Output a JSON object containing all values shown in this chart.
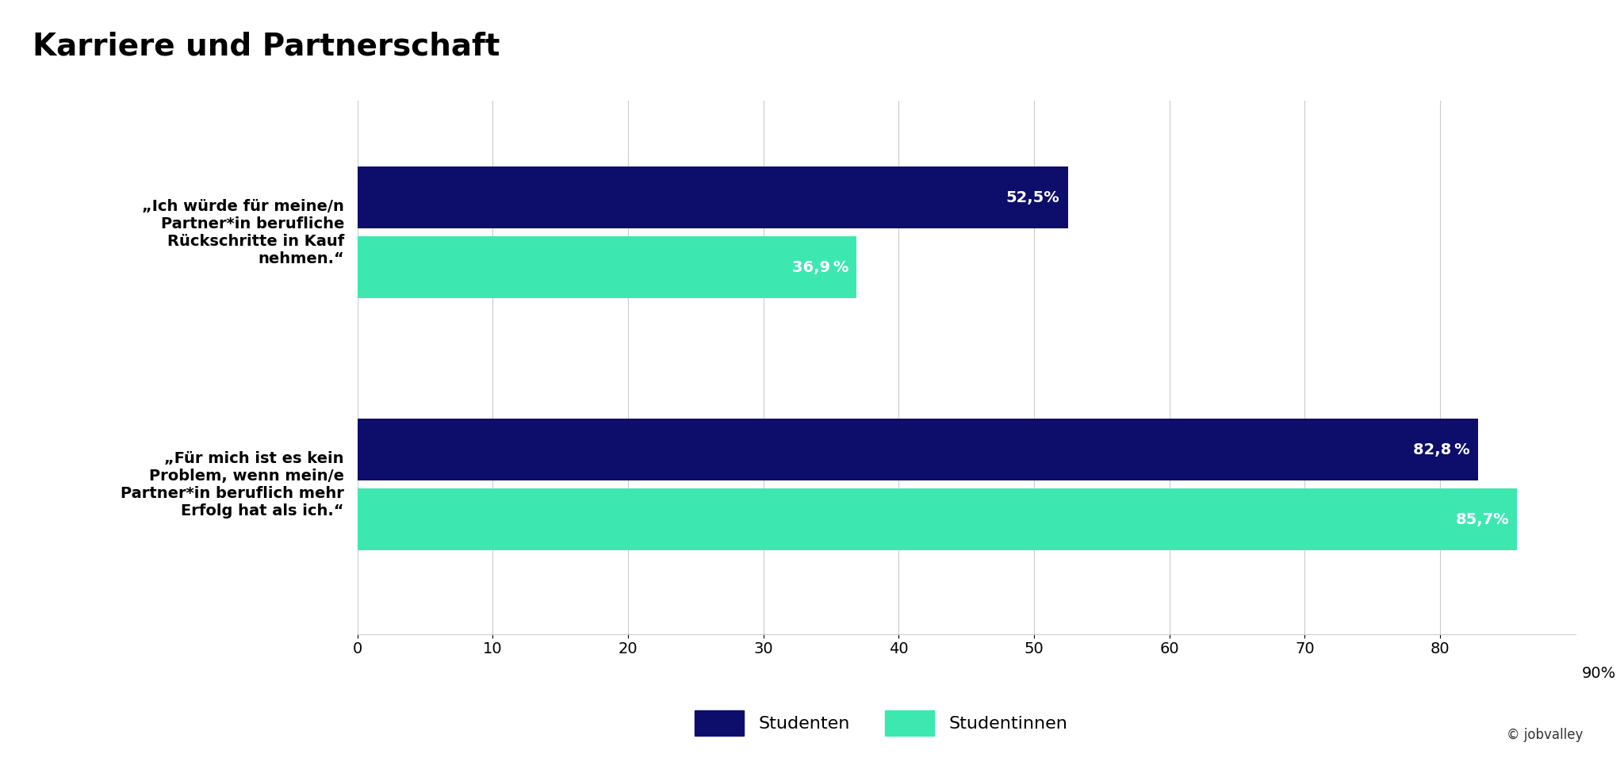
{
  "title": "Karriere und Partnerschaft",
  "categories_top": "„Ich würde für meine/n\nPartner*in berufliche\nRückschritte in Kauf\nnehmen.“",
  "categories_bottom": "„Für mich ist es kein\nProblem, wenn mein/e\nPartner*in beruflich mehr\nErfolg hat als ich.“",
  "group1_stud_val": 52.5,
  "group1_studin_val": 36.9,
  "group2_stud_val": 82.8,
  "group2_studin_val": 85.7,
  "group1_stud_lbl": "52,5%",
  "group1_studin_lbl": "36,9 %",
  "group2_stud_lbl": "82,8 %",
  "group2_studin_lbl": "85,7%",
  "studenten_color": "#0d0d6b",
  "studentinnen_color": "#3de8b0",
  "bar_height": 0.32,
  "bar_gap": 0.04,
  "group_sep": 1.0,
  "xlim_max": 90,
  "xticks": [
    0,
    10,
    20,
    30,
    40,
    50,
    60,
    70,
    80
  ],
  "xlabel_end": "90%",
  "legend_studenten": "Studenten",
  "legend_studentinnen": "Studentinnen",
  "watermark": "© jobvalley",
  "title_fontsize": 28,
  "bar_label_fontsize": 14,
  "tick_fontsize": 14,
  "legend_fontsize": 16,
  "category_fontsize": 14,
  "background_color": "#ffffff",
  "grid_color": "#cccccc"
}
